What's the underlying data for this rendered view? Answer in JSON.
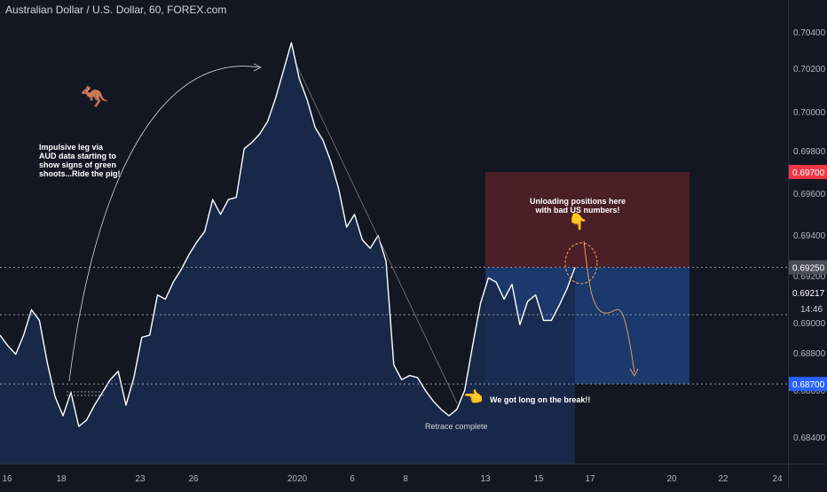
{
  "header": {
    "title": "Australian Dollar / U.S. Dollar, 60, FOREX.com"
  },
  "colors": {
    "background": "#131722",
    "line": "#ffffff",
    "area": "#1a2a4d",
    "stop_zone": "#4a1f26",
    "target_zone": "#1d3f7a",
    "axis_text": "#b2b5be",
    "stop_badge": "#f23645",
    "entry_badge": "#2962ff",
    "current_badge": "#4a4e59"
  },
  "chart_data": {
    "type": "line",
    "series": [
      {
        "values": [
          0.6893,
          0.6888,
          0.6884,
          0.6893,
          0.6905,
          0.69,
          0.688,
          0.6864,
          0.6855,
          0.6866,
          0.685,
          0.6853,
          0.686,
          0.6866,
          0.6872,
          0.6876,
          0.686,
          0.6873,
          0.6892,
          0.6893,
          0.6912,
          0.691,
          0.6918,
          0.6924,
          0.6931,
          0.6937,
          0.6942,
          0.6957,
          0.695,
          0.6957,
          0.6958,
          0.6981,
          0.6984,
          0.6988,
          0.6994,
          0.7005,
          0.7018,
          0.7031,
          0.7014,
          0.7004,
          0.6991,
          0.6985,
          0.6975,
          0.6962,
          0.6944,
          0.695,
          0.6938,
          0.6934,
          0.694,
          0.6928,
          0.6879,
          0.6872,
          0.6874,
          0.6873,
          0.6867,
          0.6862,
          0.6858,
          0.6855,
          0.6858,
          0.6867,
          0.6888,
          0.6908,
          0.692,
          0.6918,
          0.691,
          0.6917,
          0.6898,
          0.6909,
          0.6912,
          0.69,
          0.69,
          0.6907,
          0.6915,
          0.6925
        ]
      }
    ],
    "x_tick_labels": [
      "16",
      "18",
      "23",
      "26",
      "2020",
      "6",
      "8",
      "13",
      "15",
      "17",
      "20",
      "22",
      "24"
    ],
    "y_tick_labels": [
      "0.70400",
      "0.70200",
      "0.70000",
      "0.69800",
      "0.69600",
      "0.69400",
      "0.69200",
      "0.69000",
      "0.68800",
      "0.68600",
      "0.68400"
    ],
    "ylim": [
      0.6832,
      0.7044
    ],
    "levels": {
      "stop": "0.69700",
      "current": "0.69250",
      "mid": "0.69217",
      "entry": "0.68700"
    },
    "countdown": "14:46",
    "annotations": {
      "impulse": [
        "Impulsive leg via",
        "AUD data starting to",
        "show signs of green",
        "shoots...Ride the pig!"
      ],
      "unload": [
        "Unloading positions here",
        "with bad US numbers!"
      ],
      "long": "We got long on the break!!",
      "retrace": "Retrace complete"
    },
    "emojis": {
      "kangaroo": "🦘",
      "point_down": "👇",
      "point_left": "👈"
    }
  }
}
